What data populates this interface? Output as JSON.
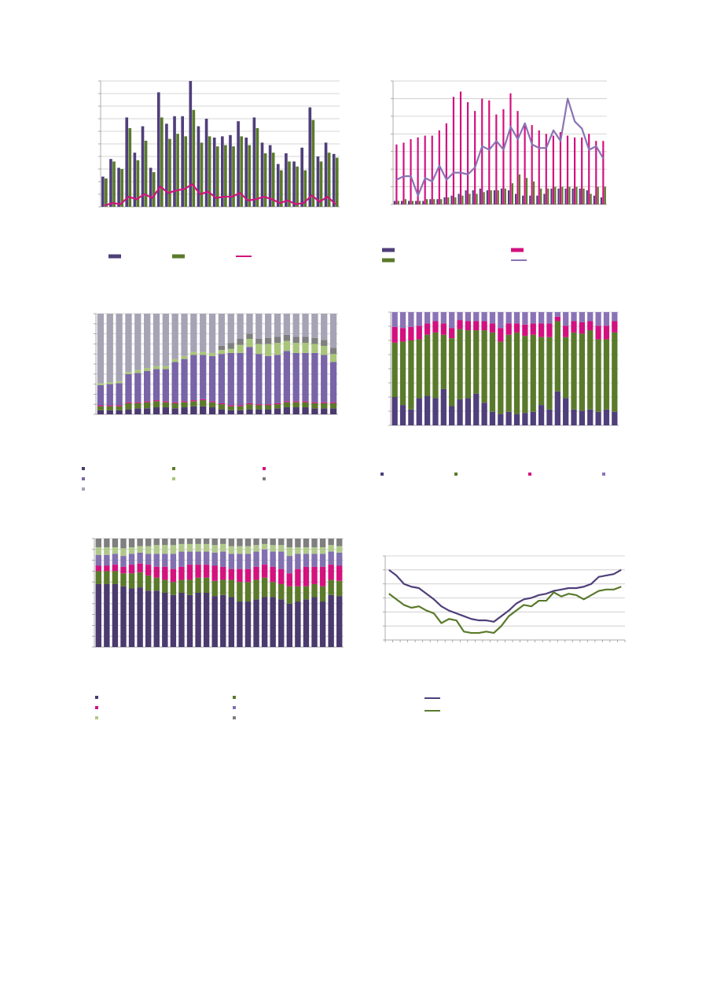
{
  "chart_data": [
    {
      "type": "bar",
      "ylim": [
        0,
        10
      ],
      "yticks": [
        0,
        1,
        2,
        3,
        4,
        5,
        6,
        7,
        8,
        9,
        10
      ],
      "grid": true,
      "legend": "bottom",
      "series": [
        {
          "color": "#4f3f7a",
          "kind": "bar",
          "values": [
            2.4,
            3.8,
            3.1,
            7.1,
            4.3,
            6.4,
            3.1,
            9.1,
            6.6,
            7.2,
            7.2,
            10,
            6.4,
            7.0,
            5.5,
            5.6,
            5.7,
            6.8,
            5.5,
            7.1,
            5.1,
            4.9,
            3.4,
            4.25,
            3.6,
            4.7,
            7.9,
            4.0,
            5.1,
            4.2
          ]
        },
        {
          "color": "#5a7a2b",
          "kind": "bar",
          "values": [
            2.25,
            3.6,
            3.0,
            6.25,
            3.7,
            5.25,
            2.75,
            7.1,
            5.4,
            5.8,
            5.6,
            7.7,
            5.1,
            5.6,
            4.8,
            4.9,
            4.8,
            5.6,
            4.9,
            6.25,
            4.25,
            4.3,
            2.9,
            3.6,
            3.2,
            2.9,
            6.9,
            3.6,
            4.3,
            3.9
          ]
        },
        {
          "color": "#d0147f",
          "kind": "line",
          "values": [
            0.1,
            0.3,
            0.2,
            0.8,
            0.6,
            1.0,
            0.7,
            1.6,
            1.1,
            1.3,
            1.4,
            1.8,
            1.0,
            1.2,
            0.7,
            0.8,
            0.8,
            1.1,
            0.5,
            0.6,
            0.8,
            0.6,
            0.3,
            0.5,
            0.2,
            0.3,
            0.9,
            0.4,
            0.8,
            0.2
          ]
        }
      ]
    },
    {
      "type": "bar",
      "ylim": [
        0,
        7
      ],
      "yticks": [
        0,
        1,
        2,
        3,
        4,
        5,
        6,
        7
      ],
      "grid": true,
      "legend": "bottom",
      "series": [
        {
          "color": "#4f3f7a",
          "kind": "bar",
          "values": [
            0.2,
            0.2,
            0.2,
            0.2,
            0.2,
            0.3,
            0.3,
            0.4,
            0.5,
            0.6,
            0.8,
            0.8,
            0.9,
            0.8,
            0.8,
            0.9,
            0.8,
            0.6,
            0.5,
            0.5,
            0.5,
            0.6,
            0.9,
            0.9,
            0.9,
            0.9,
            0.9,
            0.8,
            0.5,
            0.4
          ]
        },
        {
          "color": "#d2107f",
          "kind": "bar",
          "values": [
            3.4,
            3.5,
            3.7,
            3.8,
            3.9,
            3.9,
            4.2,
            4.6,
            6.1,
            6.4,
            5.8,
            5.3,
            6.0,
            5.9,
            5.1,
            5.4,
            6.3,
            5.3,
            4.6,
            4.5,
            4.2,
            4.0,
            3.9,
            4.1,
            3.9,
            3.8,
            3.8,
            4.0,
            3.6,
            3.6
          ]
        },
        {
          "color": "#5a7a2b",
          "kind": "bar",
          "values": [
            0.2,
            0.3,
            0.2,
            0.2,
            0.3,
            0.3,
            0.3,
            0.4,
            0.4,
            0.5,
            0.6,
            0.6,
            0.7,
            0.8,
            0.8,
            0.9,
            1.2,
            1.7,
            1.5,
            1.3,
            0.9,
            0.9,
            1.0,
            1.0,
            1.0,
            1.0,
            0.9,
            0.6,
            1.0,
            1.0
          ]
        },
        {
          "color": "#8a73b5",
          "kind": "line",
          "values": [
            1.4,
            1.6,
            1.6,
            0.5,
            1.5,
            1.3,
            2.2,
            1.4,
            1.8,
            1.8,
            1.7,
            2.1,
            3.3,
            3.1,
            3.6,
            3.1,
            4.4,
            3.7,
            4.6,
            3.4,
            3.2,
            3.2,
            4.2,
            3.6,
            6.0,
            4.7,
            4.3,
            3.1,
            3.3,
            2.6
          ]
        }
      ]
    },
    {
      "type": "stacked_bar",
      "ylim": [
        0,
        100
      ],
      "yticks": [
        0,
        10,
        20,
        30,
        40,
        50,
        60,
        70,
        80,
        90,
        100
      ],
      "grid": true,
      "legend": "bottom",
      "series": [
        {
          "color": "#4b3a6e",
          "values": [
            4,
            4,
            4,
            5,
            6,
            6,
            7,
            7,
            6,
            7,
            8,
            8,
            7,
            5,
            4,
            4,
            5,
            5,
            5,
            6,
            7,
            7,
            7,
            6,
            6,
            6
          ]
        },
        {
          "color": "#5b7a2a",
          "values": [
            4,
            4,
            4,
            6,
            5,
            6,
            6,
            5,
            5,
            5,
            5,
            6,
            5,
            5,
            4,
            4,
            5,
            4,
            4,
            4,
            5,
            5,
            5,
            5,
            5,
            5
          ]
        },
        {
          "color": "#d4127e",
          "values": [
            1,
            1,
            1,
            1,
            1,
            1,
            1,
            1,
            1,
            1,
            1,
            1,
            1,
            1,
            1,
            1,
            1,
            1,
            1,
            1,
            1,
            1,
            1,
            1,
            1,
            1
          ]
        },
        {
          "color": "#7964a8",
          "values": [
            20,
            21,
            22,
            28,
            29,
            30,
            31,
            32,
            40,
            42,
            45,
            44,
            45,
            49,
            52,
            52,
            56,
            50,
            48,
            48,
            50,
            48,
            48,
            49,
            47,
            40
          ]
        },
        {
          "color": "#a8c57a",
          "values": [
            2,
            2,
            2,
            2,
            3,
            3,
            3,
            3,
            3,
            3,
            3,
            3,
            3,
            4,
            4,
            8,
            8,
            10,
            12,
            12,
            10,
            10,
            10,
            9,
            9,
            8
          ]
        },
        {
          "color": "#7f7f7f",
          "values": [
            0,
            0,
            0,
            0,
            0,
            0,
            0,
            0,
            0,
            0,
            0,
            0,
            0,
            4,
            6,
            6,
            5,
            5,
            6,
            6,
            6,
            6,
            6,
            6,
            6,
            6
          ]
        },
        {
          "color": "#a6a3b5",
          "values": [
            69,
            68,
            67,
            58,
            56,
            54,
            52,
            52,
            45,
            42,
            38,
            38,
            39,
            32,
            29,
            25,
            20,
            25,
            24,
            23,
            21,
            23,
            23,
            24,
            26,
            34
          ]
        }
      ]
    },
    {
      "type": "stacked_bar",
      "ylim": [
        0,
        100
      ],
      "yticks": [
        0,
        12.5,
        25,
        37.5,
        50,
        62.5,
        75,
        87.5,
        100
      ],
      "grid": true,
      "legend": "bottom",
      "series": [
        {
          "color": "#4f3f7a",
          "values": [
            25,
            18,
            14,
            24,
            26,
            24,
            32,
            17,
            23,
            24,
            28,
            20,
            12,
            10,
            12,
            10,
            11,
            12,
            18,
            14,
            30,
            24,
            14,
            13,
            14,
            12,
            14,
            12
          ]
        },
        {
          "color": "#5a7a2b",
          "values": [
            48,
            56,
            61,
            52,
            54,
            58,
            48,
            60,
            62,
            60,
            56,
            64,
            70,
            64,
            68,
            72,
            68,
            68,
            60,
            64,
            62,
            54,
            68,
            68,
            70,
            64,
            62,
            70
          ]
        },
        {
          "color": "#d2107f",
          "values": [
            14,
            12,
            12,
            12,
            10,
            10,
            10,
            9,
            8,
            8,
            8,
            8,
            8,
            12,
            10,
            8,
            10,
            10,
            12,
            12,
            4,
            10,
            10,
            10,
            8,
            12,
            12,
            10
          ]
        },
        {
          "color": "#8a73b5",
          "values": [
            13,
            14,
            13,
            12,
            10,
            8,
            10,
            14,
            7,
            8,
            8,
            8,
            10,
            14,
            10,
            10,
            11,
            10,
            10,
            10,
            4,
            12,
            8,
            9,
            8,
            12,
            12,
            8
          ]
        }
      ]
    },
    {
      "type": "stacked_bar",
      "ylim": [
        0,
        100
      ],
      "yticks": [
        0,
        10,
        20,
        30,
        40,
        50,
        60,
        70,
        80,
        90,
        100
      ],
      "grid": true,
      "legend": "bottom",
      "series": [
        {
          "color": "#4b3a6e",
          "values": [
            58,
            58,
            58,
            56,
            54,
            55,
            52,
            52,
            50,
            48,
            50,
            48,
            50,
            50,
            47,
            48,
            46,
            42,
            42,
            44,
            46,
            46,
            44,
            40,
            42,
            44,
            46,
            42,
            48,
            47
          ]
        },
        {
          "color": "#5b7a2a",
          "values": [
            12,
            12,
            12,
            12,
            14,
            14,
            14,
            12,
            12,
            12,
            12,
            14,
            14,
            14,
            14,
            14,
            16,
            18,
            18,
            18,
            18,
            14,
            14,
            16,
            14,
            12,
            12,
            14,
            14,
            14
          ]
        },
        {
          "color": "#d4127e",
          "values": [
            5,
            5,
            6,
            6,
            8,
            8,
            10,
            10,
            12,
            12,
            12,
            14,
            12,
            12,
            14,
            12,
            10,
            12,
            12,
            12,
            12,
            14,
            14,
            12,
            16,
            18,
            16,
            18,
            14,
            14
          ]
        },
        {
          "color": "#8270b0",
          "values": [
            10,
            10,
            10,
            10,
            10,
            10,
            10,
            12,
            12,
            14,
            14,
            12,
            12,
            12,
            12,
            14,
            14,
            14,
            14,
            14,
            14,
            14,
            16,
            16,
            14,
            12,
            12,
            12,
            12,
            12
          ]
        },
        {
          "color": "#b0c98a",
          "values": [
            7,
            7,
            6,
            7,
            6,
            6,
            7,
            8,
            8,
            8,
            7,
            7,
            7,
            7,
            7,
            7,
            7,
            7,
            7,
            6,
            5,
            6,
            6,
            8,
            6,
            6,
            6,
            6,
            6,
            6
          ]
        },
        {
          "color": "#7f7f7f",
          "values": [
            8,
            8,
            8,
            9,
            8,
            7,
            7,
            6,
            6,
            6,
            5,
            5,
            5,
            5,
            6,
            5,
            7,
            7,
            7,
            6,
            5,
            6,
            6,
            8,
            8,
            8,
            8,
            8,
            6,
            7
          ]
        }
      ]
    },
    {
      "type": "line",
      "ylim": [
        0,
        6
      ],
      "yticks": [
        0,
        1,
        2,
        3,
        4,
        5,
        6
      ],
      "grid": true,
      "legend": "bottom",
      "series": [
        {
          "color": "#4f3f7a",
          "values": [
            5.0,
            4.6,
            4.0,
            3.8,
            3.7,
            3.3,
            2.9,
            2.4,
            2.1,
            1.9,
            1.7,
            1.5,
            1.4,
            1.4,
            1.3,
            1.7,
            2.1,
            2.6,
            2.9,
            3.0,
            3.2,
            3.3,
            3.5,
            3.6,
            3.7,
            3.7,
            3.8,
            4.0,
            4.5,
            4.6,
            4.7,
            5.0
          ]
        },
        {
          "color": "#5a7a2b",
          "values": [
            3.3,
            2.9,
            2.5,
            2.3,
            2.4,
            2.1,
            1.9,
            1.2,
            1.5,
            1.4,
            0.6,
            0.5,
            0.5,
            0.6,
            0.5,
            1.0,
            1.7,
            2.1,
            2.5,
            2.4,
            2.8,
            2.8,
            3.4,
            3.1,
            3.3,
            3.2,
            2.9,
            3.2,
            3.5,
            3.6,
            3.6,
            3.8
          ]
        }
      ]
    }
  ]
}
